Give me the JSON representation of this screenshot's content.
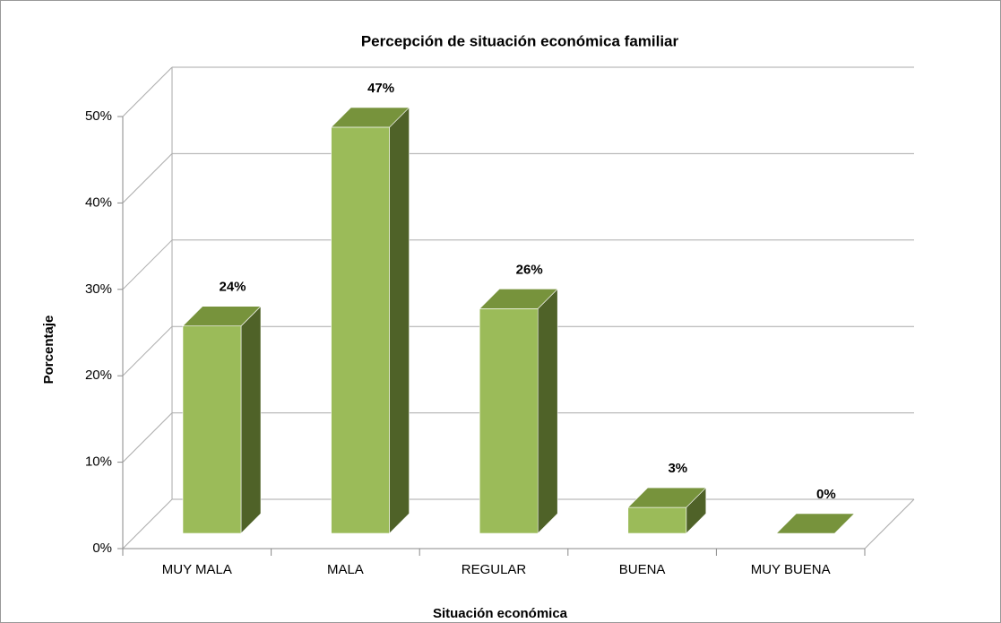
{
  "chart_data": {
    "type": "bar3d",
    "title": "Percepción de situación económica familiar",
    "categories": [
      "MUY MALA",
      "MALA",
      "REGULAR",
      "BUENA",
      "MUY BUENA"
    ],
    "values": [
      24,
      47,
      26,
      3,
      0
    ],
    "value_labels": [
      "24%",
      "47%",
      "26%",
      "3%",
      "0%"
    ],
    "colors": {
      "front": "#9bbb59",
      "top": "#77933c",
      "side": "#4f6228"
    },
    "xlabel": "Situación económica",
    "ylabel": "Porcentaje",
    "ylim": [
      0,
      50
    ],
    "yticks": [
      {
        "value": 0,
        "label": "0%"
      },
      {
        "value": 10,
        "label": "10%"
      },
      {
        "value": 20,
        "label": "20%"
      },
      {
        "value": 30,
        "label": "30%"
      },
      {
        "value": 40,
        "label": "40%"
      },
      {
        "value": 50,
        "label": "50%"
      }
    ],
    "grid": true
  }
}
